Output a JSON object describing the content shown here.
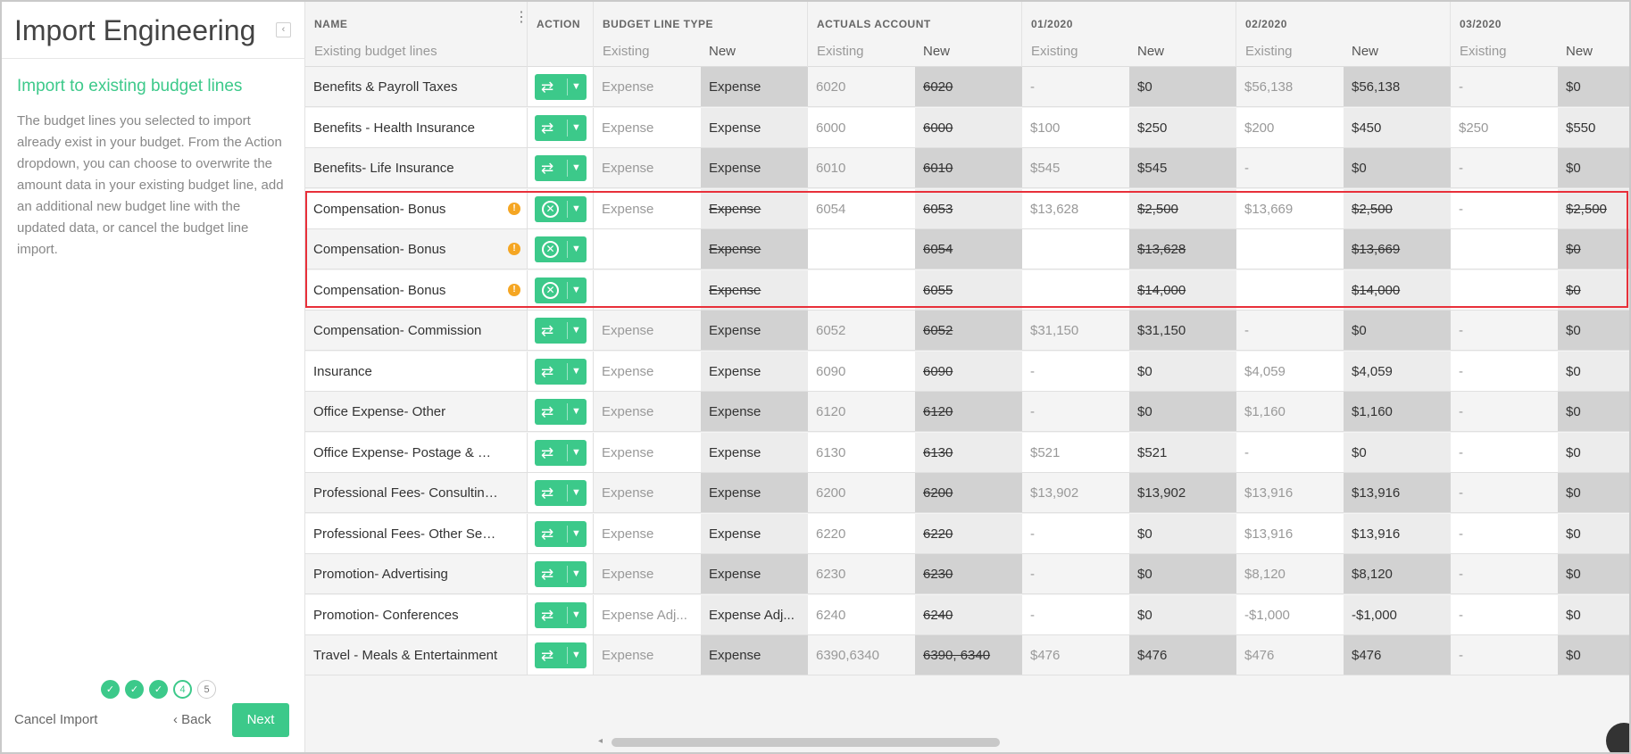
{
  "left_panel": {
    "title": "Import Engineering",
    "collapse_icon": "chevron-left-icon",
    "section_title": "Import to existing budget lines",
    "description": "The budget lines you selected to import already exist in your budget. From the Action dropdown, you can choose to overwrite the amount data in your existing budget line, add an additional new budget line with the updated data, or cancel the budget line import.",
    "steps": [
      {
        "label": "✓",
        "state": "done"
      },
      {
        "label": "✓",
        "state": "done"
      },
      {
        "label": "✓",
        "state": "done"
      },
      {
        "label": "4",
        "state": "current"
      },
      {
        "label": "5",
        "state": "todo"
      }
    ],
    "cancel_label": "Cancel Import",
    "back_label": "‹ Back",
    "next_label": "Next"
  },
  "header": {
    "name_label": "NAME",
    "name_sub": "Existing budget lines",
    "action_label": "ACTION",
    "type_label": "BUDGET LINE TYPE",
    "account_label": "ACTUALS ACCOUNT",
    "months": [
      "01/2020",
      "02/2020",
      "03/2020"
    ],
    "existing_label": "Existing",
    "new_label": "New"
  },
  "rows": [
    {
      "name": "Benefits & Payroll Taxes",
      "action": "overwrite",
      "warn": false,
      "type_ex": "Expense",
      "type_new": "Expense",
      "type_strike": false,
      "acct_ex": "6020",
      "acct_new": "6020",
      "m": [
        [
          "-",
          "$0"
        ],
        [
          "$56,138",
          "$56,138"
        ],
        [
          "-",
          "$0"
        ]
      ],
      "money_strike": false
    },
    {
      "name": "Benefits - Health Insurance",
      "action": "overwrite",
      "warn": false,
      "type_ex": "Expense",
      "type_new": "Expense",
      "type_strike": false,
      "acct_ex": "6000",
      "acct_new": "6000",
      "m": [
        [
          "$100",
          "$250"
        ],
        [
          "$200",
          "$450"
        ],
        [
          "$250",
          "$550"
        ]
      ],
      "money_strike": false
    },
    {
      "name": "Benefits- Life Insurance",
      "action": "overwrite",
      "warn": false,
      "type_ex": "Expense",
      "type_new": "Expense",
      "type_strike": false,
      "acct_ex": "6010",
      "acct_new": "6010",
      "m": [
        [
          "$545",
          "$545"
        ],
        [
          "-",
          "$0"
        ],
        [
          "-",
          "$0"
        ]
      ],
      "money_strike": false
    },
    {
      "name": "Compensation- Bonus",
      "action": "cancel",
      "warn": true,
      "type_ex": "Expense",
      "type_new": "Expense",
      "type_strike": true,
      "acct_ex": "6054",
      "acct_new": "6053",
      "m": [
        [
          "$13,628",
          "$2,500"
        ],
        [
          "$13,669",
          "$2,500"
        ],
        [
          "-",
          "$2,500"
        ]
      ],
      "money_strike": true
    },
    {
      "name": "Compensation- Bonus",
      "action": "cancel",
      "warn": true,
      "type_ex": "",
      "type_new": "Expense",
      "type_strike": true,
      "acct_ex": "",
      "acct_new": "6054",
      "m": [
        [
          "",
          "$13,628"
        ],
        [
          "",
          "$13,669"
        ],
        [
          "",
          "$0"
        ]
      ],
      "money_strike": true
    },
    {
      "name": "Compensation- Bonus",
      "action": "cancel",
      "warn": true,
      "type_ex": "",
      "type_new": "Expense",
      "type_strike": true,
      "acct_ex": "",
      "acct_new": "6055",
      "m": [
        [
          "",
          "$14,000"
        ],
        [
          "",
          "$14,000"
        ],
        [
          "",
          "$0"
        ]
      ],
      "money_strike": true
    },
    {
      "name": "Compensation- Commission",
      "action": "overwrite",
      "warn": false,
      "type_ex": "Expense",
      "type_new": "Expense",
      "type_strike": false,
      "acct_ex": "6052",
      "acct_new": "6052",
      "m": [
        [
          "$31,150",
          "$31,150"
        ],
        [
          "-",
          "$0"
        ],
        [
          "-",
          "$0"
        ]
      ],
      "money_strike": false
    },
    {
      "name": "Insurance",
      "action": "overwrite",
      "warn": false,
      "type_ex": "Expense",
      "type_new": "Expense",
      "type_strike": false,
      "acct_ex": "6090",
      "acct_new": "6090",
      "m": [
        [
          "-",
          "$0"
        ],
        [
          "$4,059",
          "$4,059"
        ],
        [
          "-",
          "$0"
        ]
      ],
      "money_strike": false
    },
    {
      "name": "Office Expense- Other",
      "action": "overwrite",
      "warn": false,
      "type_ex": "Expense",
      "type_new": "Expense",
      "type_strike": false,
      "acct_ex": "6120",
      "acct_new": "6120",
      "m": [
        [
          "-",
          "$0"
        ],
        [
          "$1,160",
          "$1,160"
        ],
        [
          "-",
          "$0"
        ]
      ],
      "money_strike": false
    },
    {
      "name": "Office Expense- Postage & Deliv...",
      "action": "overwrite",
      "warn": false,
      "type_ex": "Expense",
      "type_new": "Expense",
      "type_strike": false,
      "acct_ex": "6130",
      "acct_new": "6130",
      "m": [
        [
          "$521",
          "$521"
        ],
        [
          "-",
          "$0"
        ],
        [
          "-",
          "$0"
        ]
      ],
      "money_strike": false
    },
    {
      "name": "Professional Fees- Consulting F...",
      "action": "overwrite",
      "warn": false,
      "type_ex": "Expense",
      "type_new": "Expense",
      "type_strike": false,
      "acct_ex": "6200",
      "acct_new": "6200",
      "m": [
        [
          "$13,902",
          "$13,902"
        ],
        [
          "$13,916",
          "$13,916"
        ],
        [
          "-",
          "$0"
        ]
      ],
      "money_strike": false
    },
    {
      "name": "Professional Fees- Other Servic...",
      "action": "overwrite",
      "warn": false,
      "type_ex": "Expense",
      "type_new": "Expense",
      "type_strike": false,
      "acct_ex": "6220",
      "acct_new": "6220",
      "m": [
        [
          "-",
          "$0"
        ],
        [
          "$13,916",
          "$13,916"
        ],
        [
          "-",
          "$0"
        ]
      ],
      "money_strike": false
    },
    {
      "name": "Promotion- Advertising",
      "action": "overwrite",
      "warn": false,
      "type_ex": "Expense",
      "type_new": "Expense",
      "type_strike": false,
      "acct_ex": "6230",
      "acct_new": "6230",
      "m": [
        [
          "-",
          "$0"
        ],
        [
          "$8,120",
          "$8,120"
        ],
        [
          "-",
          "$0"
        ]
      ],
      "money_strike": false
    },
    {
      "name": "Promotion- Conferences",
      "action": "overwrite",
      "warn": false,
      "type_ex": "Expense Adj...",
      "type_new": "Expense Adj...",
      "type_strike": false,
      "acct_ex": "6240",
      "acct_new": "6240",
      "m": [
        [
          "-",
          "$0"
        ],
        [
          "-$1,000",
          "-$1,000"
        ],
        [
          "-",
          "$0"
        ]
      ],
      "money_strike": false
    },
    {
      "name": "Travel - Meals & Entertainment",
      "action": "overwrite",
      "warn": false,
      "type_ex": "Expense",
      "type_new": "Expense",
      "type_strike": false,
      "acct_ex": "6390,6340",
      "acct_new": "6390, 6340",
      "m": [
        [
          "$476",
          "$476"
        ],
        [
          "$476",
          "$476"
        ],
        [
          "-",
          "$0"
        ]
      ],
      "money_strike": false
    }
  ],
  "icons": {
    "overwrite": "swap-arrows-icon",
    "cancel": "cancel-circle-icon",
    "chevron": "chevron-down-icon",
    "warning": "warning-dot-icon",
    "menu": "kebab-menu-icon"
  },
  "colors": {
    "accent": "#3cc98a",
    "warning": "#f5a623",
    "highlight": "#e8303a"
  }
}
